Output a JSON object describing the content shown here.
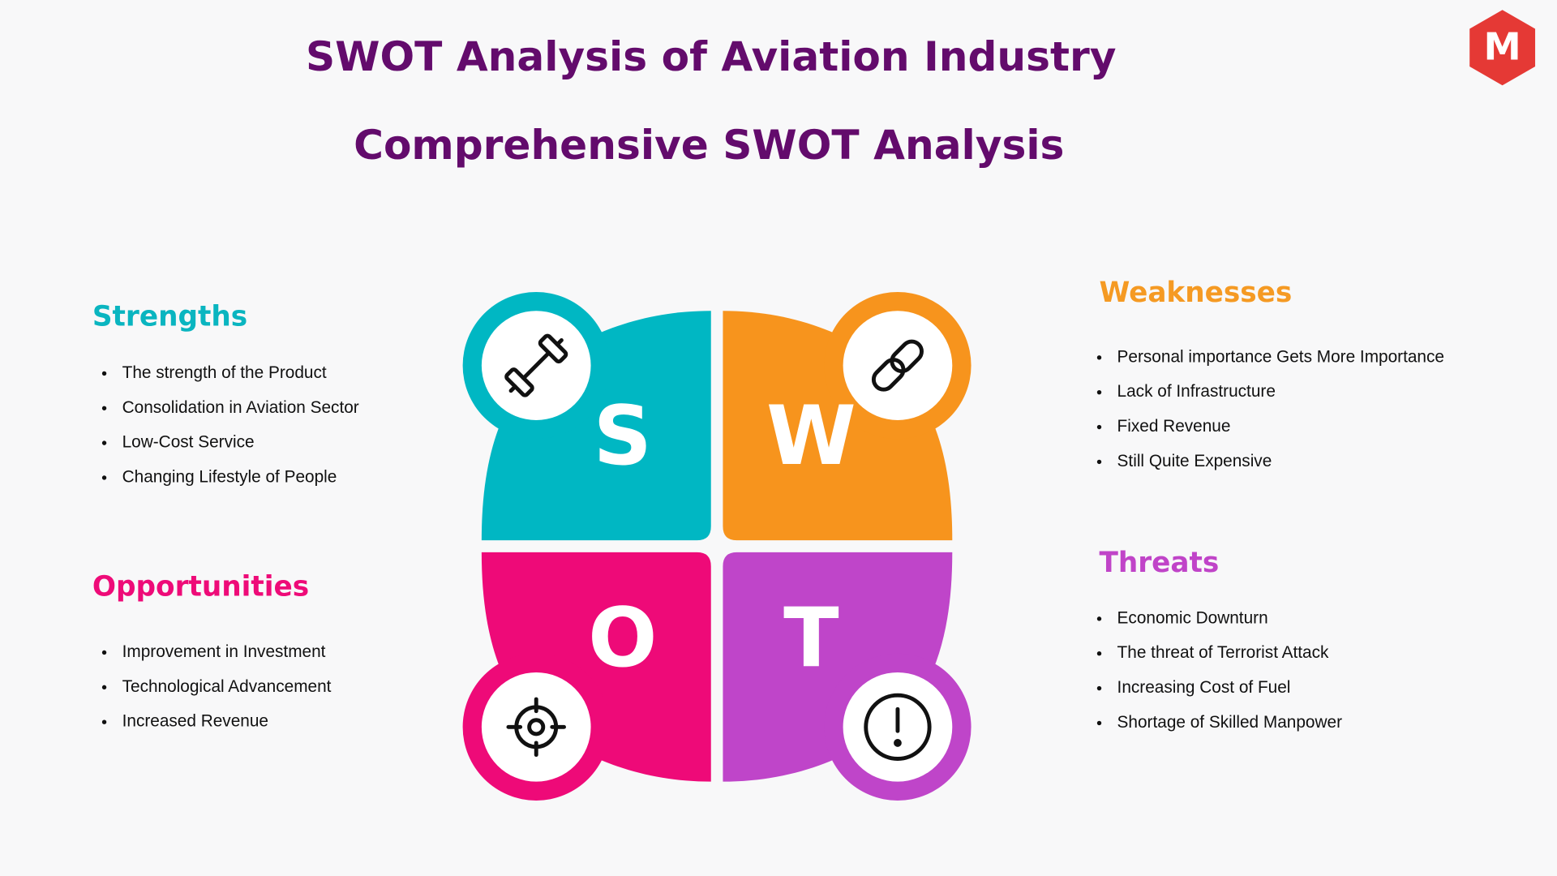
{
  "header": {
    "title": "SWOT Analysis of Aviation Industry",
    "subtitle": "Comprehensive SWOT Analysis",
    "logo": "M"
  },
  "quadrants": [
    {
      "title": "Strengths",
      "letter": "S",
      "items": [
        "The strength of the Product",
        "Consolidation in Aviation Sector",
        "Low-Cost Service",
        "Changing Lifestyle of People"
      ]
    },
    {
      "title": "Weaknesses",
      "letter": "W",
      "items": [
        "Personal importance Gets More Importance",
        "Lack of Infrastructure",
        "Fixed Revenue",
        "Still Quite Expensive"
      ]
    },
    {
      "title": "Opportunities",
      "letter": "O",
      "items": [
        "Improvement in Investment",
        "Technological Advancement",
        "Increased Revenue"
      ]
    },
    {
      "title": "Threats",
      "letter": "T",
      "items": [
        "Economic Downturn",
        "The threat of Terrorist Attack",
        "Increasing Cost of Fuel",
        "Shortage of Skilled Manpower"
      ]
    }
  ]
}
